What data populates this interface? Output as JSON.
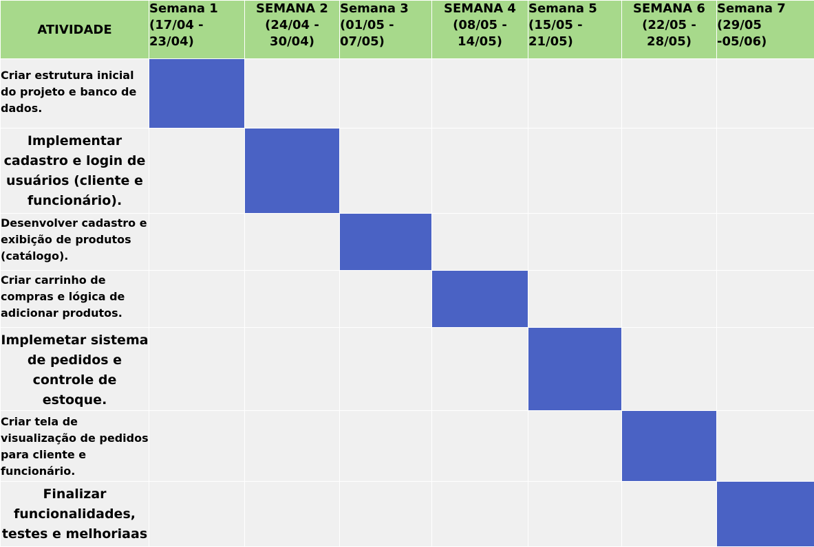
{
  "header": {
    "activity_label": "ATIVIDADE",
    "weeks": [
      {
        "line1": "Semana 1",
        "line2": "(17/04 -",
        "line3": "23/04)",
        "align": "left"
      },
      {
        "line1": "SEMANA 2",
        "line2": "(24/04 -",
        "line3": "30/04)",
        "align": "center"
      },
      {
        "line1": "Semana 3",
        "line2": "(01/05 -",
        "line3": "07/05)",
        "align": "left"
      },
      {
        "line1": "SEMANA 4",
        "line2": "(08/05 -",
        "line3": "14/05)",
        "align": "center"
      },
      {
        "line1": "Semana 5",
        "line2": "(15/05 -",
        "line3": "21/05)",
        "align": "left"
      },
      {
        "line1": "SEMANA 6",
        "line2": "(22/05 -",
        "line3": "28/05)",
        "align": "center"
      },
      {
        "line1": "Semana 7",
        "line2": "(29/05",
        "line3": "-05/06)",
        "align": "left"
      }
    ]
  },
  "activities": [
    {
      "text": "Criar estrutura inicial do projeto e banco de dados.",
      "week": 1
    },
    {
      "text": "Implementar cadastro e login de usuários (cliente e funcionário).",
      "week": 2
    },
    {
      "text": "Desenvolver cadastro e exibição de produtos (catálogo).",
      "week": 3
    },
    {
      "text": "Criar carrinho de compras e lógica de adicionar produtos.",
      "week": 4
    },
    {
      "text": "Implemetar sistema de pedidos e controle de estoque.",
      "week": 5
    },
    {
      "text": "Criar tela de visualização de pedidos para cliente e funcionário.",
      "week": 6
    },
    {
      "text": "Finalizar funcionalidades, testes e melhoriaas",
      "week": 7
    }
  ],
  "colors": {
    "header_bg": "#a7d98b",
    "cell_bg": "#f0f0f0",
    "active_cell": "#4a62c4",
    "grid_line": "#ffffff"
  }
}
